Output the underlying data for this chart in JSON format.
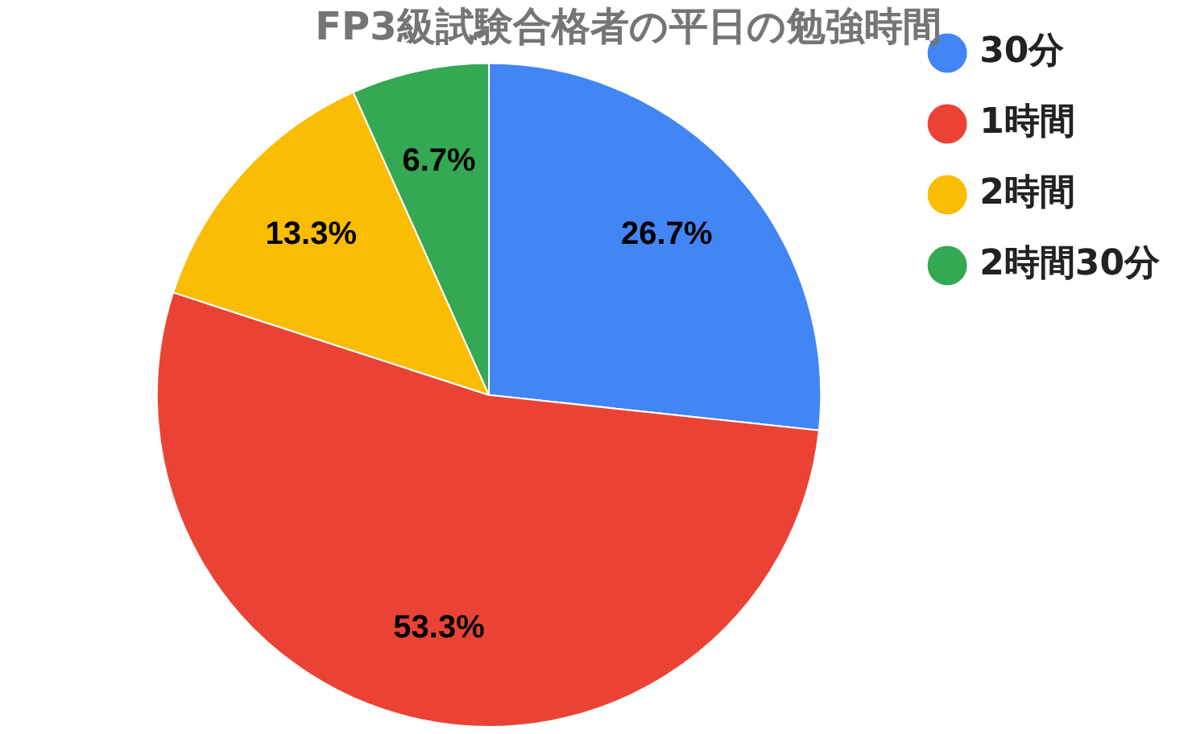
{
  "chart_data": {
    "type": "pie",
    "title": "FP3級試験合格者の平日の勉強時間",
    "categories": [
      "30分",
      "1時間",
      "2時間",
      "2時間30分"
    ],
    "values": [
      26.7,
      53.3,
      13.3,
      6.7
    ],
    "colors": [
      "#4285f4",
      "#ea4335",
      "#fbbc04",
      "#34a853"
    ],
    "value_labels": [
      "26.7%",
      "53.3%",
      "13.3%",
      "6.7%"
    ],
    "legend": "right"
  }
}
